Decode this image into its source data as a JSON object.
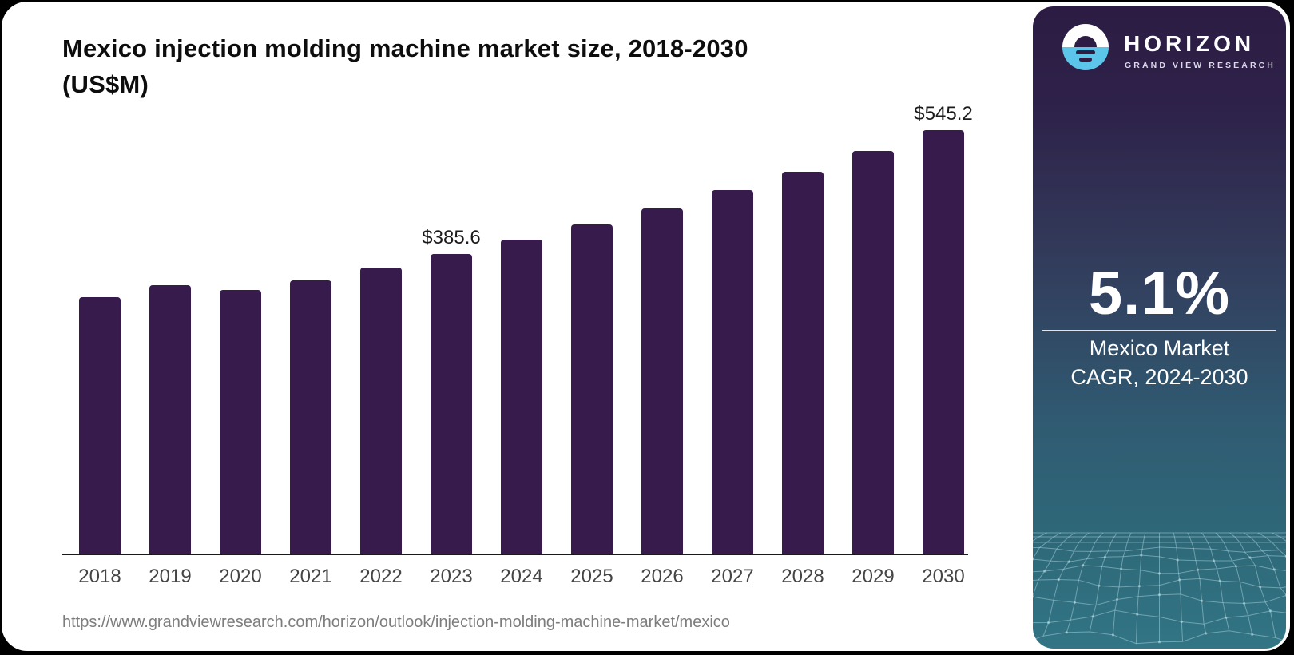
{
  "header": {
    "title_line1": "Mexico injection molding machine market size, 2018-2030",
    "title_line2": "(US$M)"
  },
  "chart_data": {
    "type": "bar",
    "title": "Mexico injection molding machine market size, 2018-2030 (US$M)",
    "categories": [
      "2018",
      "2019",
      "2020",
      "2021",
      "2022",
      "2023",
      "2024",
      "2025",
      "2026",
      "2027",
      "2028",
      "2029",
      "2030"
    ],
    "values": [
      330.0,
      345.4,
      339.2,
      351.6,
      368.0,
      385.6,
      404.0,
      423.5,
      444.1,
      467.7,
      491.4,
      518.1,
      545.2
    ],
    "data_labels": {
      "2023": "$385.6",
      "2030": "$545.2"
    },
    "xlabel": "",
    "ylabel": "",
    "ylim": [
      0,
      560
    ],
    "gridlines": false,
    "legend": "none",
    "bar_color": "#371B4D"
  },
  "source": {
    "url": "https://www.grandviewresearch.com/horizon/outlook/injection-molding-machine-market/mexico"
  },
  "sidebar": {
    "brand": {
      "name": "HORIZON",
      "subtitle": "GRAND VIEW RESEARCH"
    },
    "stat": {
      "value": "5.1%",
      "label_line1": "Mexico Market",
      "label_line2": "CAGR, 2024-2030"
    },
    "colors": {
      "bar": "#371B4D",
      "logo_blue": "#5BC6EA",
      "panel_top": "#2C1C43",
      "panel_bottom": "#327585"
    }
  }
}
